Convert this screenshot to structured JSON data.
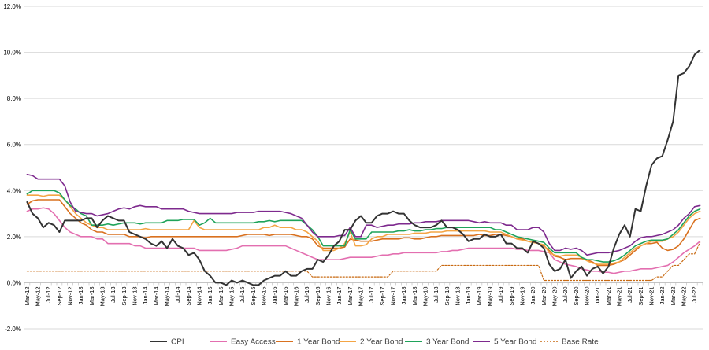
{
  "chart_data": {
    "type": "line",
    "title": "",
    "xlabel": "",
    "ylabel": "",
    "ylim": [
      -2.0,
      12.0
    ],
    "y_ticks": [
      "-2.0%",
      "0.0%",
      "2.0%",
      "4.0%",
      "6.0%",
      "8.0%",
      "10.0%",
      "12.0%"
    ],
    "y_tick_values": [
      -2,
      0,
      2,
      4,
      6,
      8,
      10,
      12
    ],
    "grid": true,
    "legend_position": "bottom",
    "x": [
      "Mar-12",
      "Apr-12",
      "May-12",
      "Jun-12",
      "Jul-12",
      "Aug-12",
      "Sep-12",
      "Oct-12",
      "Nov-12",
      "Dec-12",
      "Jan-13",
      "Feb-13",
      "Mar-13",
      "Apr-13",
      "May-13",
      "Jun-13",
      "Jul-13",
      "Aug-13",
      "Sep-13",
      "Oct-13",
      "Nov-13",
      "Dec-13",
      "Jan-14",
      "Feb-14",
      "Mar-14",
      "Apr-14",
      "May-14",
      "Jun-14",
      "Jul-14",
      "Aug-14",
      "Sep-14",
      "Oct-14",
      "Nov-14",
      "Dec-14",
      "Jan-15",
      "Feb-15",
      "Mar-15",
      "Apr-15",
      "May-15",
      "Jun-15",
      "Jul-15",
      "Aug-15",
      "Sep-15",
      "Oct-15",
      "Nov-15",
      "Dec-15",
      "Jan-16",
      "Feb-16",
      "Mar-16",
      "Apr-16",
      "May-16",
      "Jun-16",
      "Jul-16",
      "Aug-16",
      "Sep-16",
      "Oct-16",
      "Nov-16",
      "Dec-16",
      "Jan-17",
      "Feb-17",
      "Mar-17",
      "Apr-17",
      "May-17",
      "Jun-17",
      "Jul-17",
      "Aug-17",
      "Sep-17",
      "Oct-17",
      "Nov-17",
      "Dec-17",
      "Jan-18",
      "Feb-18",
      "Mar-18",
      "Apr-18",
      "May-18",
      "Jun-18",
      "Jul-18",
      "Aug-18",
      "Sep-18",
      "Oct-18",
      "Nov-18",
      "Dec-18",
      "Jan-19",
      "Feb-19",
      "Mar-19",
      "Apr-19",
      "May-19",
      "Jun-19",
      "Jul-19",
      "Aug-19",
      "Sep-19",
      "Oct-19",
      "Nov-19",
      "Dec-19",
      "Jan-20",
      "Feb-20",
      "Mar-20",
      "Apr-20",
      "May-20",
      "Jun-20",
      "Jul-20",
      "Aug-20",
      "Sep-20",
      "Oct-20",
      "Nov-20",
      "Dec-20",
      "Jan-21",
      "Feb-21",
      "Mar-21",
      "Apr-21",
      "May-21",
      "Jun-21",
      "Jul-21",
      "Aug-21",
      "Sep-21",
      "Oct-21",
      "Nov-21",
      "Dec-21",
      "Jan-22",
      "Feb-22",
      "Mar-22",
      "Apr-22",
      "May-22",
      "Jun-22",
      "Jul-22",
      "Aug-22"
    ],
    "x_labels": [
      "Mar-12",
      "May-12",
      "Jul-12",
      "Sep-12",
      "Nov-12",
      "Jan-13",
      "Mar-13",
      "May-13",
      "Jul-13",
      "Sep-13",
      "Nov-13",
      "Jan-14",
      "Mar-14",
      "May-14",
      "Jul-14",
      "Sep-14",
      "Nov-14",
      "Jan-15",
      "Mar-15",
      "May-15",
      "Jul-15",
      "Sep-15",
      "Nov-15",
      "Jan-16",
      "Mar-16",
      "May-16",
      "Jul-16",
      "Sep-16",
      "Nov-16",
      "Jan-17",
      "Mar-17",
      "May-17",
      "Jul-17",
      "Sep-17",
      "Nov-17",
      "Jan-18",
      "Mar-18",
      "May-18",
      "Jul-18",
      "Sep-18",
      "Nov-18",
      "Jan-19",
      "Mar-19",
      "May-19",
      "Jul-19",
      "Sep-19",
      "Nov-19",
      "Jan-20",
      "Mar-20",
      "May-20",
      "Jul-20",
      "Sep-20",
      "Nov-20",
      "Jan-21",
      "Mar-21",
      "May-21",
      "Jul-21",
      "Sep-21",
      "Nov-21",
      "Jan-22",
      "Mar-22",
      "May-22",
      "Jul-22"
    ],
    "series": [
      {
        "name": "CPI",
        "color": "#333333",
        "dash": "",
        "values": [
          3.5,
          3.0,
          2.8,
          2.4,
          2.6,
          2.5,
          2.2,
          2.7,
          2.7,
          2.7,
          2.7,
          2.8,
          2.8,
          2.4,
          2.7,
          2.9,
          2.8,
          2.7,
          2.7,
          2.2,
          2.1,
          2.0,
          1.9,
          1.7,
          1.6,
          1.8,
          1.5,
          1.9,
          1.6,
          1.5,
          1.2,
          1.3,
          1.0,
          0.5,
          0.3,
          0.0,
          0.0,
          -0.1,
          0.1,
          0.0,
          0.1,
          0.0,
          -0.1,
          -0.1,
          0.1,
          0.2,
          0.3,
          0.3,
          0.5,
          0.3,
          0.3,
          0.5,
          0.6,
          0.6,
          1.0,
          0.9,
          1.2,
          1.6,
          1.8,
          2.3,
          2.3,
          2.7,
          2.9,
          2.6,
          2.6,
          2.9,
          3.0,
          3.0,
          3.1,
          3.0,
          3.0,
          2.7,
          2.5,
          2.4,
          2.4,
          2.4,
          2.5,
          2.7,
          2.4,
          2.4,
          2.3,
          2.1,
          1.8,
          1.9,
          1.9,
          2.1,
          2.0,
          2.0,
          2.1,
          1.7,
          1.7,
          1.5,
          1.5,
          1.3,
          1.8,
          1.7,
          1.5,
          0.8,
          0.5,
          0.6,
          1.0,
          0.2,
          0.5,
          0.7,
          0.3,
          0.6,
          0.7,
          0.4,
          0.7,
          1.5,
          2.1,
          2.5,
          2.0,
          3.2,
          3.1,
          4.2,
          5.1,
          5.4,
          5.5,
          6.2,
          7.0,
          9.0,
          9.1,
          9.4,
          9.9,
          10.1
        ]
      },
      {
        "name": "Easy Access",
        "color": "#e36fb0",
        "dash": "",
        "values": [
          3.1,
          3.2,
          3.2,
          3.25,
          3.2,
          3.0,
          2.7,
          2.4,
          2.2,
          2.1,
          2.0,
          2.0,
          2.0,
          1.9,
          1.9,
          1.7,
          1.7,
          1.7,
          1.7,
          1.7,
          1.6,
          1.6,
          1.5,
          1.5,
          1.5,
          1.5,
          1.5,
          1.5,
          1.5,
          1.5,
          1.5,
          1.5,
          1.4,
          1.4,
          1.4,
          1.4,
          1.4,
          1.4,
          1.45,
          1.5,
          1.6,
          1.6,
          1.6,
          1.6,
          1.6,
          1.6,
          1.6,
          1.6,
          1.6,
          1.5,
          1.4,
          1.3,
          1.2,
          1.1,
          1.0,
          1.0,
          1.0,
          1.0,
          1.0,
          1.05,
          1.1,
          1.1,
          1.1,
          1.1,
          1.1,
          1.15,
          1.2,
          1.2,
          1.25,
          1.25,
          1.3,
          1.3,
          1.3,
          1.3,
          1.3,
          1.3,
          1.3,
          1.35,
          1.35,
          1.4,
          1.4,
          1.45,
          1.5,
          1.5,
          1.5,
          1.5,
          1.5,
          1.5,
          1.5,
          1.5,
          1.5,
          1.45,
          1.45,
          1.4,
          1.4,
          1.4,
          1.35,
          1.3,
          1.0,
          0.9,
          0.8,
          0.75,
          0.7,
          0.6,
          0.55,
          0.5,
          0.5,
          0.45,
          0.45,
          0.4,
          0.45,
          0.5,
          0.5,
          0.55,
          0.6,
          0.6,
          0.6,
          0.65,
          0.7,
          0.75,
          0.9,
          1.1,
          1.3,
          1.45,
          1.6,
          1.8
        ]
      },
      {
        "name": "1 Year Bond",
        "color": "#d9711f",
        "dash": "",
        "values": [
          3.4,
          3.55,
          3.6,
          3.6,
          3.6,
          3.6,
          3.6,
          3.3,
          3.0,
          2.8,
          2.6,
          2.5,
          2.3,
          2.2,
          2.2,
          2.1,
          2.1,
          2.1,
          2.1,
          2.0,
          2.0,
          2.0,
          1.95,
          2.0,
          2.0,
          2.0,
          2.0,
          2.0,
          2.0,
          2.0,
          2.0,
          2.0,
          2.0,
          2.0,
          2.0,
          2.0,
          2.0,
          2.0,
          2.0,
          2.0,
          2.05,
          2.1,
          2.1,
          2.1,
          2.1,
          2.05,
          2.1,
          2.1,
          2.1,
          2.1,
          2.05,
          2.0,
          2.0,
          1.9,
          1.6,
          1.5,
          1.5,
          1.5,
          1.5,
          1.55,
          1.9,
          1.85,
          1.8,
          1.8,
          1.8,
          1.85,
          1.9,
          1.9,
          1.9,
          1.9,
          1.95,
          1.95,
          1.9,
          1.9,
          1.95,
          2.0,
          2.0,
          2.05,
          2.05,
          2.05,
          2.05,
          2.05,
          2.05,
          2.05,
          2.1,
          2.05,
          2.05,
          2.1,
          2.1,
          2.05,
          2.0,
          1.9,
          1.9,
          1.8,
          1.75,
          1.7,
          1.6,
          1.4,
          1.15,
          1.1,
          1.0,
          1.05,
          1.05,
          1.05,
          1.0,
          0.9,
          0.75,
          0.75,
          0.75,
          0.8,
          0.9,
          1.0,
          1.2,
          1.4,
          1.6,
          1.7,
          1.7,
          1.75,
          1.5,
          1.4,
          1.45,
          1.6,
          1.9,
          2.3,
          2.7,
          2.8
        ]
      },
      {
        "name": "2 Year Bond",
        "color": "#f4a545",
        "dash": "",
        "values": [
          3.8,
          3.8,
          3.8,
          3.75,
          3.8,
          3.8,
          3.8,
          3.6,
          3.3,
          3.0,
          2.8,
          2.6,
          2.5,
          2.4,
          2.4,
          2.3,
          2.3,
          2.3,
          2.3,
          2.3,
          2.3,
          2.3,
          2.35,
          2.3,
          2.3,
          2.3,
          2.3,
          2.3,
          2.3,
          2.3,
          2.3,
          2.7,
          2.4,
          2.3,
          2.3,
          2.3,
          2.3,
          2.3,
          2.3,
          2.3,
          2.3,
          2.3,
          2.3,
          2.3,
          2.4,
          2.4,
          2.5,
          2.4,
          2.4,
          2.4,
          2.3,
          2.3,
          2.2,
          2.0,
          1.8,
          1.4,
          1.4,
          1.4,
          1.5,
          1.7,
          2.2,
          1.6,
          1.6,
          1.65,
          1.9,
          2.0,
          2.0,
          2.1,
          2.1,
          2.1,
          2.1,
          2.1,
          2.15,
          2.15,
          2.15,
          2.2,
          2.2,
          2.2,
          2.25,
          2.25,
          2.25,
          2.25,
          2.25,
          2.25,
          2.25,
          2.25,
          2.2,
          2.2,
          2.2,
          2.1,
          2.0,
          1.9,
          1.85,
          1.8,
          1.75,
          1.7,
          1.65,
          1.3,
          1.2,
          1.15,
          1.2,
          1.2,
          1.2,
          1.1,
          0.95,
          0.85,
          0.8,
          0.8,
          0.8,
          0.85,
          0.9,
          1.1,
          1.3,
          1.5,
          1.6,
          1.7,
          1.8,
          1.8,
          1.8,
          1.9,
          2.0,
          2.2,
          2.5,
          2.8,
          3.0,
          3.1
        ]
      },
      {
        "name": "3 Year Bond",
        "color": "#1fa35a",
        "dash": "",
        "values": [
          3.85,
          4.0,
          4.0,
          4.0,
          4.0,
          4.0,
          3.9,
          3.6,
          3.35,
          3.2,
          3.0,
          2.9,
          2.5,
          2.5,
          2.5,
          2.55,
          2.5,
          2.55,
          2.6,
          2.6,
          2.6,
          2.55,
          2.6,
          2.6,
          2.6,
          2.6,
          2.7,
          2.7,
          2.7,
          2.75,
          2.75,
          2.75,
          2.5,
          2.6,
          2.8,
          2.6,
          2.6,
          2.6,
          2.6,
          2.6,
          2.6,
          2.6,
          2.6,
          2.65,
          2.65,
          2.7,
          2.65,
          2.7,
          2.7,
          2.7,
          2.7,
          2.7,
          2.5,
          2.3,
          2.0,
          1.6,
          1.6,
          1.6,
          1.6,
          1.6,
          2.3,
          1.9,
          1.9,
          1.9,
          2.2,
          2.2,
          2.2,
          2.2,
          2.2,
          2.25,
          2.25,
          2.3,
          2.25,
          2.25,
          2.3,
          2.3,
          2.35,
          2.35,
          2.4,
          2.4,
          2.4,
          2.4,
          2.4,
          2.4,
          2.4,
          2.4,
          2.4,
          2.3,
          2.3,
          2.2,
          2.1,
          2.0,
          1.95,
          1.9,
          1.85,
          1.8,
          1.75,
          1.5,
          1.3,
          1.3,
          1.3,
          1.3,
          1.3,
          1.1,
          1.0,
          1.0,
          0.95,
          0.9,
          0.9,
          0.95,
          1.05,
          1.2,
          1.4,
          1.6,
          1.7,
          1.8,
          1.85,
          1.85,
          1.85,
          1.9,
          2.1,
          2.3,
          2.6,
          2.9,
          3.1,
          3.2
        ]
      },
      {
        "name": "5 Year Bond",
        "color": "#7e2a8e",
        "dash": "",
        "values": [
          4.7,
          4.65,
          4.5,
          4.5,
          4.5,
          4.5,
          4.5,
          4.2,
          3.5,
          3.1,
          3.05,
          3.0,
          3.0,
          2.9,
          2.95,
          3.0,
          3.1,
          3.2,
          3.25,
          3.2,
          3.3,
          3.35,
          3.3,
          3.3,
          3.3,
          3.2,
          3.2,
          3.2,
          3.2,
          3.2,
          3.1,
          3.05,
          3.0,
          3.0,
          3.0,
          3.0,
          3.0,
          3.0,
          3.0,
          3.05,
          3.05,
          3.05,
          3.05,
          3.1,
          3.1,
          3.1,
          3.1,
          3.1,
          3.05,
          3.0,
          2.9,
          2.8,
          2.5,
          2.2,
          2.0,
          2.0,
          2.0,
          2.0,
          2.05,
          2.05,
          2.4,
          2.0,
          2.0,
          2.5,
          2.5,
          2.4,
          2.45,
          2.5,
          2.5,
          2.55,
          2.55,
          2.55,
          2.6,
          2.6,
          2.65,
          2.65,
          2.65,
          2.7,
          2.7,
          2.7,
          2.7,
          2.7,
          2.7,
          2.65,
          2.6,
          2.65,
          2.6,
          2.6,
          2.6,
          2.5,
          2.5,
          2.3,
          2.3,
          2.3,
          2.4,
          2.4,
          2.2,
          1.7,
          1.4,
          1.4,
          1.5,
          1.45,
          1.5,
          1.4,
          1.2,
          1.25,
          1.3,
          1.3,
          1.3,
          1.35,
          1.4,
          1.5,
          1.6,
          1.8,
          1.95,
          2.0,
          2.0,
          2.05,
          2.1,
          2.2,
          2.3,
          2.5,
          2.8,
          3.0,
          3.3,
          3.35
        ]
      },
      {
        "name": "Base Rate",
        "color": "#c86a12",
        "dash": "2,2",
        "values": [
          0.5,
          0.5,
          0.5,
          0.5,
          0.5,
          0.5,
          0.5,
          0.5,
          0.5,
          0.5,
          0.5,
          0.5,
          0.5,
          0.5,
          0.5,
          0.5,
          0.5,
          0.5,
          0.5,
          0.5,
          0.5,
          0.5,
          0.5,
          0.5,
          0.5,
          0.5,
          0.5,
          0.5,
          0.5,
          0.5,
          0.5,
          0.5,
          0.5,
          0.5,
          0.5,
          0.5,
          0.5,
          0.5,
          0.5,
          0.5,
          0.5,
          0.5,
          0.5,
          0.5,
          0.5,
          0.5,
          0.5,
          0.5,
          0.5,
          0.5,
          0.5,
          0.5,
          0.5,
          0.25,
          0.25,
          0.25,
          0.25,
          0.25,
          0.25,
          0.25,
          0.25,
          0.25,
          0.25,
          0.25,
          0.25,
          0.25,
          0.25,
          0.25,
          0.5,
          0.5,
          0.5,
          0.5,
          0.5,
          0.5,
          0.5,
          0.5,
          0.5,
          0.75,
          0.75,
          0.75,
          0.75,
          0.75,
          0.75,
          0.75,
          0.75,
          0.75,
          0.75,
          0.75,
          0.75,
          0.75,
          0.75,
          0.75,
          0.75,
          0.75,
          0.75,
          0.75,
          0.1,
          0.1,
          0.1,
          0.1,
          0.1,
          0.1,
          0.1,
          0.1,
          0.1,
          0.1,
          0.1,
          0.1,
          0.1,
          0.1,
          0.1,
          0.1,
          0.1,
          0.1,
          0.1,
          0.1,
          0.1,
          0.25,
          0.25,
          0.5,
          0.75,
          0.75,
          1.0,
          1.25,
          1.25,
          1.75
        ]
      }
    ]
  }
}
